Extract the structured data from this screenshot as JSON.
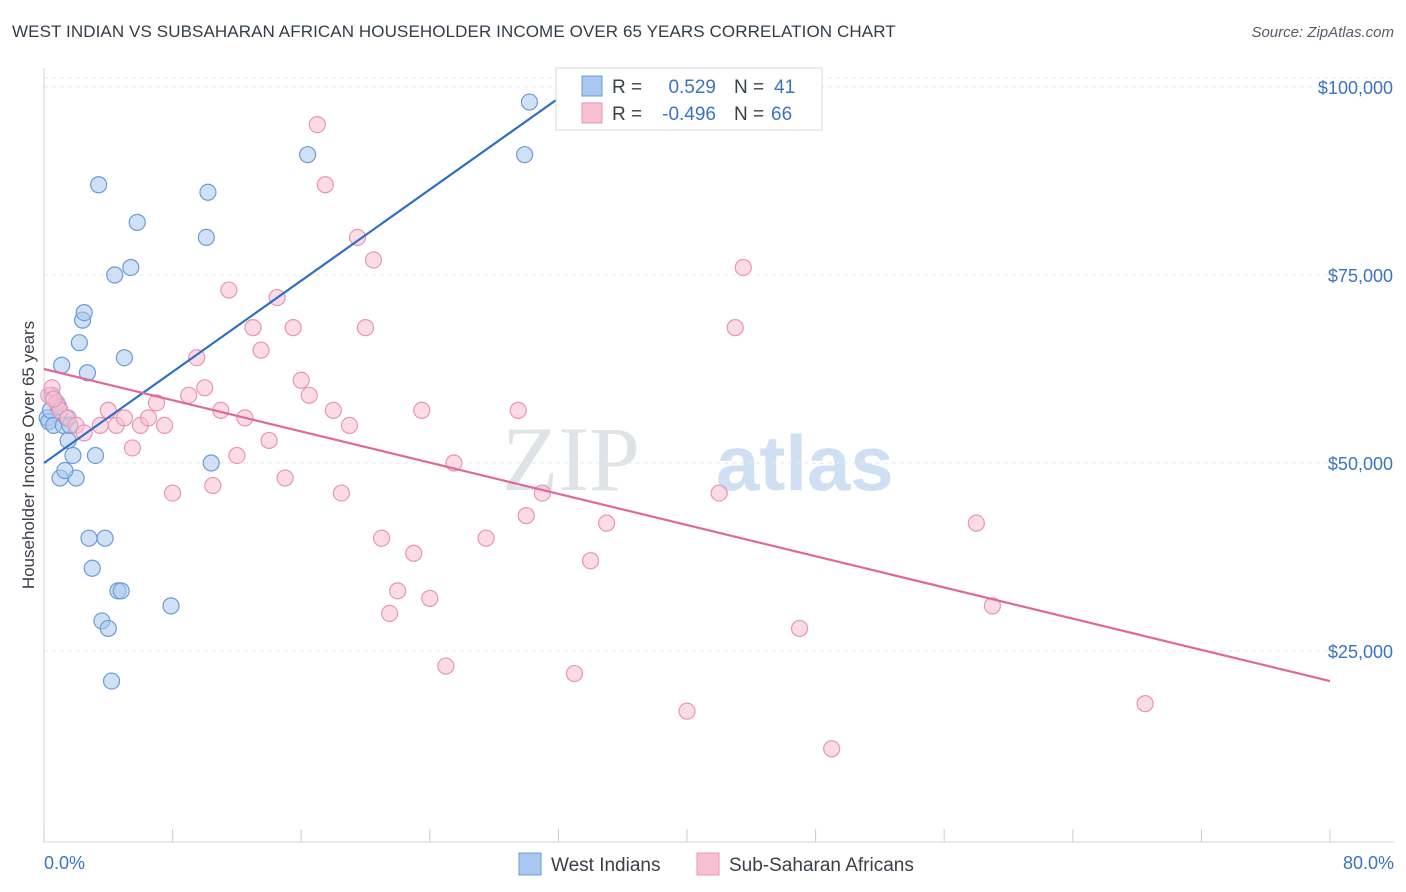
{
  "header": {
    "title": "WEST INDIAN VS SUBSAHARAN AFRICAN HOUSEHOLDER INCOME OVER 65 YEARS CORRELATION CHART",
    "source": "Source: ZipAtlas.com"
  },
  "watermark": {
    "zip": "ZIP",
    "atlas": "atlas"
  },
  "chart_data": {
    "type": "scatter",
    "ylabel": "Householder Income Over 65 years",
    "xlim": [
      0,
      80
    ],
    "ylim": [
      0,
      105000
    ],
    "x_tick_labels": [
      "0.0%",
      "80.0%"
    ],
    "y_ticks": [
      {
        "value": 25000,
        "label": "$25,000"
      },
      {
        "value": 50000,
        "label": "$50,000"
      },
      {
        "value": 75000,
        "label": "$75,000"
      },
      {
        "value": 100000,
        "label": "$100,000"
      }
    ],
    "grid": true,
    "legend_top": {
      "rows": [
        {
          "r_label": "R =",
          "r_value": "0.529",
          "n_label": "N =",
          "n_value": "41"
        },
        {
          "r_label": "R =",
          "r_value": "-0.496",
          "n_label": "N =",
          "n_value": "66"
        }
      ]
    },
    "colors": {
      "series_0_fill": "#a9c8ef",
      "series_0_stroke": "#6a9bd8",
      "series_0_line": "#2f6fc6",
      "series_1_fill": "#f7bfd1",
      "series_1_stroke": "#e995b2",
      "series_1_line": "#e0689a"
    },
    "series": [
      {
        "name": "West Indians",
        "points": [
          [
            0.2,
            56
          ],
          [
            0.3,
            55.5
          ],
          [
            0.4,
            57
          ],
          [
            0.5,
            59
          ],
          [
            0.6,
            55
          ],
          [
            0.8,
            58
          ],
          [
            1.0,
            48
          ],
          [
            1.1,
            63
          ],
          [
            1.2,
            55
          ],
          [
            1.4,
            56
          ],
          [
            1.5,
            53
          ],
          [
            1.6,
            55
          ],
          [
            1.8,
            51
          ],
          [
            2.0,
            48
          ],
          [
            2.2,
            66
          ],
          [
            2.4,
            69
          ],
          [
            2.5,
            70
          ],
          [
            2.7,
            62
          ],
          [
            2.8,
            40
          ],
          [
            3.0,
            36
          ],
          [
            3.2,
            51
          ],
          [
            3.4,
            87
          ],
          [
            3.6,
            29
          ],
          [
            3.8,
            40
          ],
          [
            4.0,
            28
          ],
          [
            4.2,
            21
          ],
          [
            4.4,
            75
          ],
          [
            4.6,
            33
          ],
          [
            4.8,
            33
          ],
          [
            5.0,
            64
          ],
          [
            5.4,
            76
          ],
          [
            5.8,
            82
          ],
          [
            7.9,
            31
          ],
          [
            10.1,
            80
          ],
          [
            10.2,
            86
          ],
          [
            10.4,
            50
          ],
          [
            16.4,
            91
          ],
          [
            29.9,
            91
          ],
          [
            30.2,
            98
          ],
          [
            1.3,
            49
          ],
          [
            0.9,
            57.5
          ]
        ],
        "trend": [
          [
            0,
            50
          ],
          [
            33,
            100
          ]
        ]
      },
      {
        "name": "Sub-Saharan Africans",
        "points": [
          [
            0.3,
            59
          ],
          [
            0.5,
            60
          ],
          [
            0.8,
            58
          ],
          [
            1.0,
            57
          ],
          [
            1.5,
            56
          ],
          [
            2.0,
            55
          ],
          [
            2.5,
            54
          ],
          [
            3.5,
            55
          ],
          [
            4.0,
            57
          ],
          [
            4.5,
            55
          ],
          [
            5.0,
            56
          ],
          [
            5.5,
            52
          ],
          [
            6.0,
            55
          ],
          [
            6.5,
            56
          ],
          [
            7.0,
            58
          ],
          [
            7.5,
            55
          ],
          [
            8.0,
            46
          ],
          [
            9.0,
            59
          ],
          [
            9.5,
            64
          ],
          [
            10.0,
            60
          ],
          [
            10.5,
            47
          ],
          [
            11.0,
            57
          ],
          [
            11.5,
            73
          ],
          [
            12.0,
            51
          ],
          [
            12.5,
            56
          ],
          [
            13.0,
            68
          ],
          [
            13.5,
            65
          ],
          [
            14.0,
            53
          ],
          [
            14.5,
            72
          ],
          [
            15.0,
            48
          ],
          [
            15.5,
            68
          ],
          [
            16.0,
            61
          ],
          [
            16.5,
            59
          ],
          [
            17.0,
            95
          ],
          [
            17.5,
            87
          ],
          [
            18.0,
            57
          ],
          [
            18.5,
            46
          ],
          [
            19.0,
            55
          ],
          [
            19.5,
            80
          ],
          [
            20.0,
            68
          ],
          [
            20.5,
            77
          ],
          [
            21.0,
            40
          ],
          [
            21.5,
            30
          ],
          [
            22.0,
            33
          ],
          [
            23.0,
            38
          ],
          [
            23.5,
            57
          ],
          [
            24.0,
            32
          ],
          [
            25.0,
            23
          ],
          [
            25.5,
            50
          ],
          [
            27.5,
            40
          ],
          [
            29.5,
            57
          ],
          [
            30.0,
            43
          ],
          [
            31.0,
            46
          ],
          [
            33.0,
            22
          ],
          [
            34.0,
            37
          ],
          [
            35.0,
            42
          ],
          [
            40.0,
            17
          ],
          [
            42.0,
            46
          ],
          [
            43.0,
            68
          ],
          [
            43.5,
            76
          ],
          [
            47.0,
            28
          ],
          [
            49.0,
            12
          ],
          [
            58.0,
            42
          ],
          [
            59.0,
            31
          ],
          [
            68.5,
            18
          ],
          [
            0.6,
            58.5
          ]
        ],
        "trend": [
          [
            0,
            62.5
          ],
          [
            80,
            21
          ]
        ]
      }
    ]
  }
}
